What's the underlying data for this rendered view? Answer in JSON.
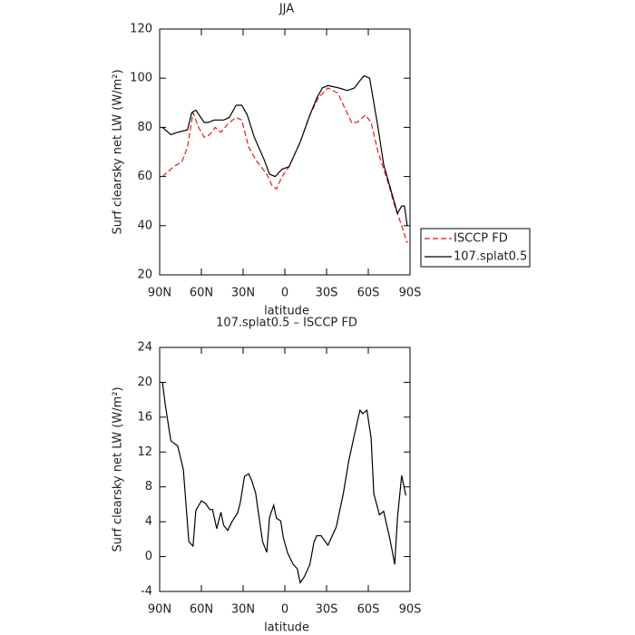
{
  "chart_data": [
    {
      "type": "line",
      "title": "JJA",
      "xlabel": "latitude",
      "ylabel": "Surf clearsky net LW (W/m²)",
      "xlim": [
        90,
        -90
      ],
      "xticks": [
        {
          "value": 90,
          "label": "90N"
        },
        {
          "value": 60,
          "label": "60N"
        },
        {
          "value": 30,
          "label": "30N"
        },
        0,
        {
          "value": -30,
          "label": "30S"
        },
        {
          "value": -60,
          "label": "60S"
        },
        {
          "value": -90,
          "label": "90S"
        }
      ],
      "ylim": [
        20,
        120
      ],
      "yticks": [
        20,
        40,
        60,
        80,
        100,
        120
      ],
      "legend": "right",
      "series": [
        {
          "name": "ISCCP FD",
          "color": "#e41a1c",
          "linestyle": "dashed",
          "x": [
            88,
            80,
            74,
            70,
            66,
            62,
            58,
            54,
            50,
            46,
            40,
            35,
            31,
            26,
            20,
            13,
            9,
            6,
            2,
            -3,
            -11,
            -18,
            -24,
            -31,
            -38,
            -43,
            -48,
            -52,
            -58,
            -62,
            -67,
            -74,
            -79,
            -84,
            -88
          ],
          "values": [
            60,
            64,
            66,
            72,
            86,
            80,
            76,
            77,
            80,
            78,
            82,
            84,
            83,
            72,
            66,
            61,
            56,
            55,
            60,
            64,
            74,
            85,
            92,
            96,
            94,
            88,
            82,
            82,
            85,
            82,
            70,
            58,
            48,
            40,
            33
          ]
        },
        {
          "name": "107.splat0.5",
          "color": "#000000",
          "linestyle": "solid",
          "x": [
            88,
            82,
            77,
            70,
            67,
            64,
            58,
            55,
            51,
            44,
            40,
            35,
            31,
            27,
            22,
            15,
            11,
            7,
            2,
            -3,
            -11,
            -18,
            -23,
            -27,
            -31,
            -39,
            -45,
            -50,
            -54,
            -57,
            -61,
            -67,
            -71,
            -76,
            -81,
            -84,
            -86,
            -88
          ],
          "values": [
            80,
            77,
            78,
            79,
            86,
            87,
            82,
            82,
            83,
            83,
            84,
            89,
            89,
            85,
            76,
            67,
            61,
            60,
            63,
            64,
            74,
            85,
            92,
            96,
            97,
            96,
            95,
            96,
            99,
            101,
            100,
            80,
            65,
            55,
            45,
            48,
            48,
            40
          ]
        }
      ]
    },
    {
      "type": "line",
      "title": "107.splat0.5 – ISCCP FD",
      "xlabel": "latitude",
      "ylabel": "Surf clearsky net LW (W/m²)",
      "xlim": [
        90,
        -90
      ],
      "xticks": [
        {
          "value": 90,
          "label": "90N"
        },
        {
          "value": 60,
          "label": "60N"
        },
        {
          "value": 30,
          "label": "30N"
        },
        0,
        {
          "value": -30,
          "label": "30S"
        },
        {
          "value": -60,
          "label": "60S"
        },
        {
          "value": -90,
          "label": "90S"
        }
      ],
      "ylim": [
        -4,
        24
      ],
      "yticks": [
        -4,
        0,
        4,
        8,
        12,
        16,
        20,
        24
      ],
      "color": "#000000",
      "x": [
        88,
        86,
        82,
        77,
        73,
        69,
        66,
        64,
        60,
        57,
        54,
        52,
        49,
        46,
        44,
        41,
        38,
        34,
        32,
        29,
        26,
        24,
        21,
        19,
        16,
        13,
        11,
        8,
        6,
        3,
        1,
        -2,
        -6,
        -9,
        -11,
        -14,
        -18,
        -21,
        -23,
        -26,
        -31,
        -37,
        -42,
        -46,
        -50,
        -54,
        -56,
        -59,
        -62,
        -64,
        -68,
        -71,
        -75,
        -77,
        -79,
        -81,
        -84,
        -87
      ],
      "values": [
        20,
        17.5,
        13.3,
        12.7,
        10,
        1.7,
        1.2,
        5.3,
        6.4,
        6.1,
        5.4,
        5.4,
        3.2,
        5.1,
        3.6,
        3,
        4,
        5,
        6.2,
        9.2,
        9.5,
        8.8,
        7.3,
        5,
        1.7,
        0.5,
        4.5,
        5.9,
        4.4,
        4.1,
        2.1,
        0.4,
        -0.9,
        -1.4,
        -3,
        -2.3,
        -0.9,
        1.7,
        2.4,
        2.4,
        1.3,
        3.4,
        7.2,
        11,
        14,
        16.8,
        16.4,
        16.8,
        13.6,
        7.2,
        4.8,
        5.2,
        2.4,
        0.8,
        -0.9,
        4.5,
        9.3,
        7
      ]
    }
  ]
}
